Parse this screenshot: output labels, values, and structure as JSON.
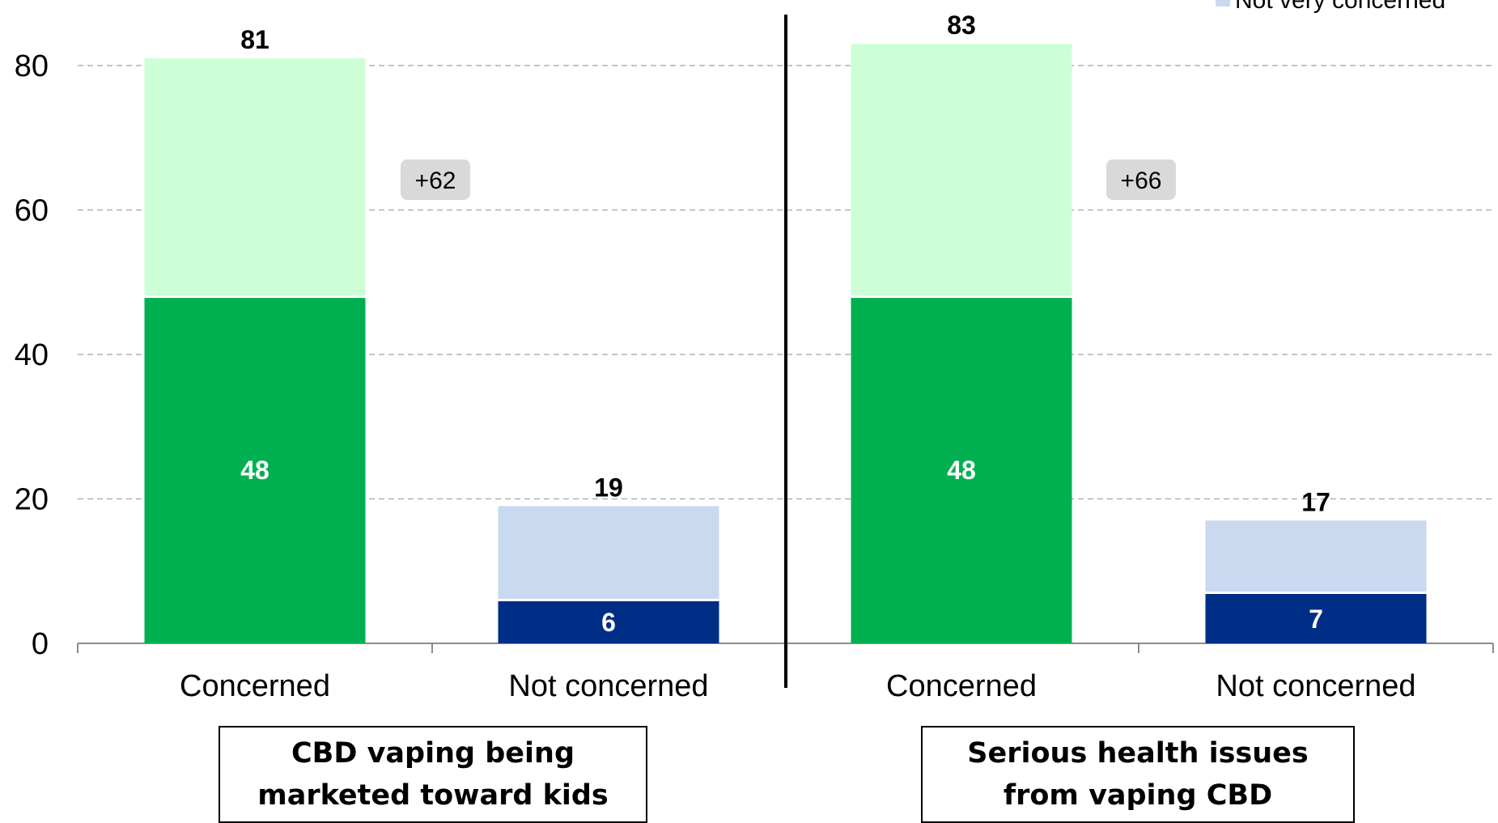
{
  "chart_data": {
    "type": "bar",
    "stacked": true,
    "ylim": [
      0,
      80
    ],
    "yticks": [
      0,
      20,
      40,
      60,
      80
    ],
    "grid": true,
    "legend": {
      "placement": "top-right",
      "visible_entries": [
        "Not very concerned"
      ]
    },
    "colors": {
      "concerned_strong": "#00b050",
      "concerned_light": "#ccffd6",
      "not_concerned_strong": "#002d86",
      "not_concerned_light": "#c8d9f0",
      "diff_box": "#d9d9d9"
    },
    "groups": [
      {
        "label": "CBD vaping being marketed toward kids",
        "diff_label": "+62",
        "bars": [
          {
            "category": "Concerned",
            "total": 81,
            "strong": 48,
            "total_label": "81",
            "strong_label": "48",
            "scheme": "concerned"
          },
          {
            "category": "Not concerned",
            "total": 19,
            "strong": 6,
            "total_label": "19",
            "strong_label": "6",
            "scheme": "not_concerned"
          }
        ]
      },
      {
        "label": "Serious health issues from vaping CBD",
        "diff_label": "+66",
        "bars": [
          {
            "category": "Concerned",
            "total": 83,
            "strong": 48,
            "total_label": "83",
            "strong_label": "48",
            "scheme": "concerned"
          },
          {
            "category": "Not concerned",
            "total": 17,
            "strong": 7,
            "total_label": "17",
            "strong_label": "7",
            "scheme": "not_concerned"
          }
        ]
      }
    ]
  }
}
